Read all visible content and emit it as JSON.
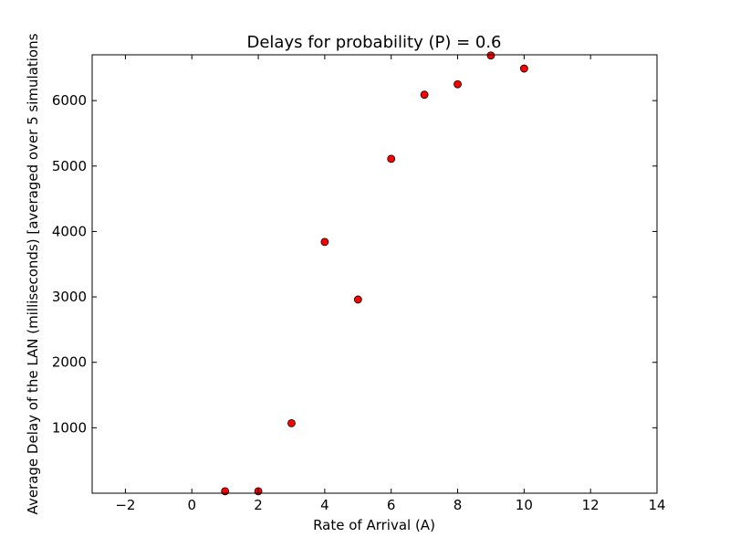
{
  "chart_data": {
    "type": "scatter",
    "title": "Delays for probability (P) = 0.6",
    "xlabel": "Rate of Arrival (A)",
    "ylabel": "Average Delay of the LAN (milliseconds) [averaged over 5 simulations",
    "xlim": [
      -3,
      14
    ],
    "ylim": [
      0,
      6700
    ],
    "xticks": [
      -2,
      0,
      2,
      4,
      6,
      8,
      10,
      12,
      14
    ],
    "yticks": [
      1000,
      2000,
      3000,
      4000,
      5000,
      6000
    ],
    "grid": false,
    "marker_color": "#ff0000",
    "marker_edge_color": "#000000",
    "series": [
      {
        "x": [
          1,
          2,
          3,
          4,
          5,
          6,
          7,
          8,
          9,
          10
        ],
        "y": [
          30,
          30,
          1070,
          3840,
          2960,
          5110,
          6090,
          6250,
          6690,
          6490
        ]
      }
    ]
  }
}
